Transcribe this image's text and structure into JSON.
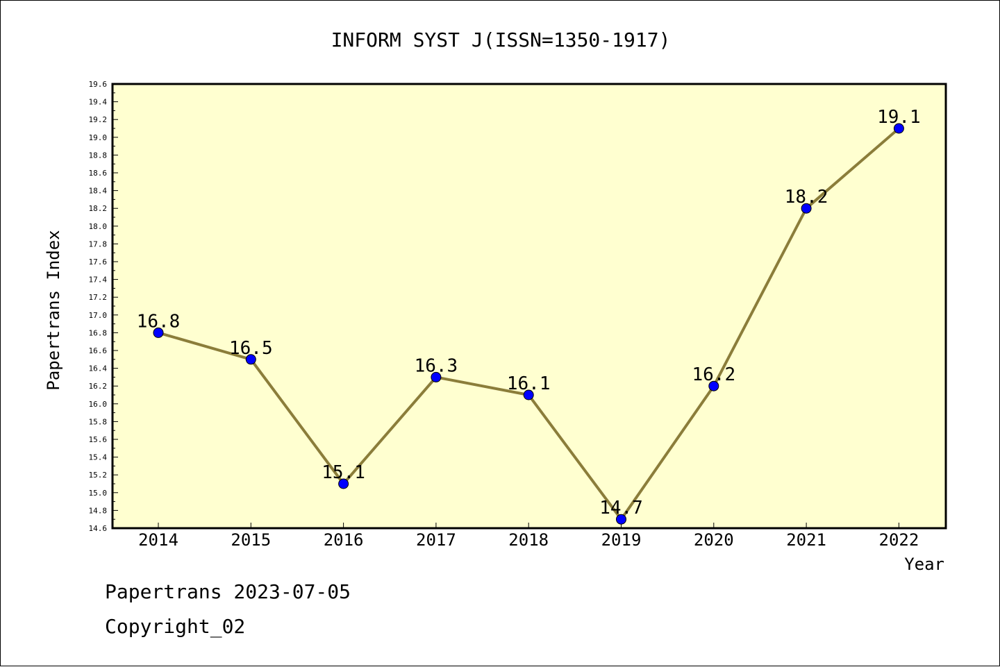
{
  "chart_data": {
    "type": "line",
    "title": "INFORM SYST J(ISSN=1350-1917)",
    "xlabel": "Year",
    "ylabel": "Papertrans Index",
    "categories": [
      "2014",
      "2015",
      "2016",
      "2017",
      "2018",
      "2019",
      "2020",
      "2021",
      "2022"
    ],
    "series": [
      {
        "values": [
          16.8,
          16.5,
          15.1,
          16.3,
          16.1,
          14.7,
          16.2,
          18.2,
          19.1
        ],
        "labels": [
          "16.8",
          "16.5",
          "15.1",
          "16.3",
          "16.1",
          "14.7",
          "16.2",
          "18.2",
          "19.1"
        ]
      }
    ],
    "ylim": [
      14.6,
      19.6
    ],
    "yticks": [
      "14.6",
      "14.8",
      "15.0",
      "15.2",
      "15.4",
      "15.6",
      "15.8",
      "16.0",
      "16.2",
      "16.4",
      "16.6",
      "16.8",
      "17.0",
      "17.2",
      "17.4",
      "17.6",
      "17.8",
      "18.0",
      "18.2",
      "18.4",
      "18.6",
      "18.8",
      "19.0",
      "19.2",
      "19.4",
      "19.6"
    ],
    "grid": false,
    "colors": {
      "plot_background": "#ffffd0",
      "line": "#8b7d3a",
      "marker": "#0000ff"
    }
  },
  "footer": {
    "line1": "Papertrans 2023-07-05",
    "line2": "Copyright_02"
  }
}
